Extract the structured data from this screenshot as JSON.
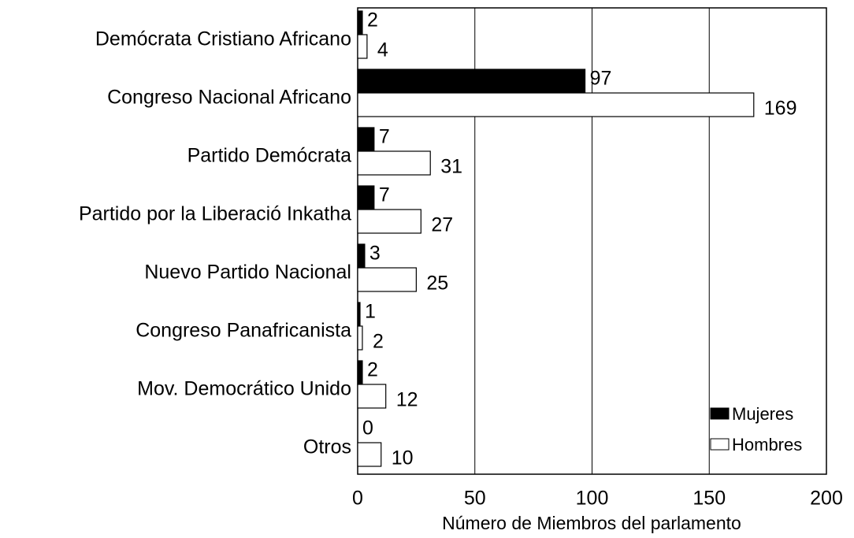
{
  "chart_data": {
    "type": "bar",
    "orientation": "horizontal",
    "categories": [
      "Demócrata Cristiano Africano",
      "Congreso Nacional Africano",
      "Partido Demócrata",
      "Partido por la Liberació Inkatha",
      "Nuevo Partido Nacional",
      "Congreso Panafricanista",
      "Mov. Democrático Unido",
      "Otros"
    ],
    "series": [
      {
        "name": "Mujeres",
        "color": "#000000",
        "values": [
          2,
          97,
          7,
          7,
          3,
          1,
          2,
          0
        ]
      },
      {
        "name": "Hombres",
        "color": "#ffffff",
        "values": [
          4,
          169,
          31,
          27,
          25,
          2,
          12,
          10
        ]
      }
    ],
    "xlabel": "Número de Miembros del parlamento",
    "xlim": [
      0,
      200
    ],
    "xticks": [
      0,
      50,
      100,
      150,
      200
    ],
    "grid": true,
    "legend": "lower right"
  }
}
